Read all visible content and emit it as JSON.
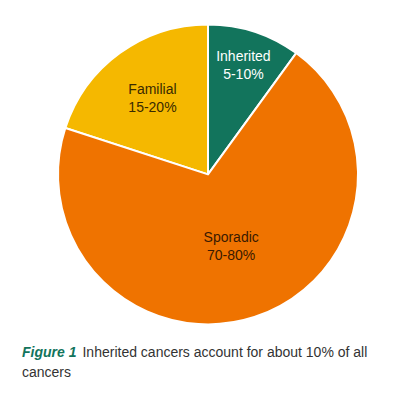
{
  "chart_data": {
    "type": "pie",
    "categories": [
      "Inherited",
      "Familial",
      "Sporadic"
    ],
    "values": [
      10,
      20,
      70
    ],
    "value_labels": [
      "5-10%",
      "15-20%",
      "70-80%"
    ],
    "colors": [
      "#12745c",
      "#f5b800",
      "#ef7300"
    ],
    "data_labels": true,
    "caption_label": "Figure 1",
    "caption": "Inherited cancers account for about 10% of all cancers"
  }
}
